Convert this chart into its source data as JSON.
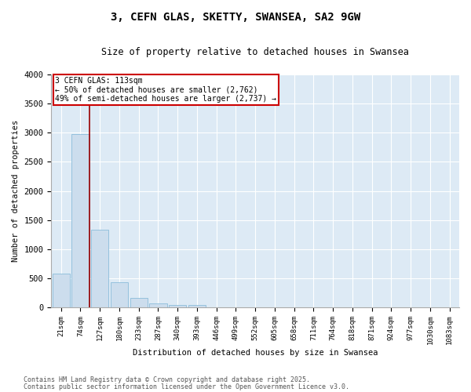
{
  "title": "3, CEFN GLAS, SKETTY, SWANSEA, SA2 9GW",
  "subtitle": "Size of property relative to detached houses in Swansea",
  "xlabel": "Distribution of detached houses by size in Swansea",
  "ylabel": "Number of detached properties",
  "bar_color": "#ccdded",
  "bar_edge_color": "#8bbcda",
  "background_color": "#ddeaf5",
  "grid_color": "#ffffff",
  "fig_background": "#ffffff",
  "categories": [
    "21sqm",
    "74sqm",
    "127sqm",
    "180sqm",
    "233sqm",
    "287sqm",
    "340sqm",
    "393sqm",
    "446sqm",
    "499sqm",
    "552sqm",
    "605sqm",
    "658sqm",
    "711sqm",
    "764sqm",
    "818sqm",
    "871sqm",
    "924sqm",
    "977sqm",
    "1030sqm",
    "1083sqm"
  ],
  "values": [
    580,
    2980,
    1340,
    430,
    160,
    70,
    40,
    35,
    0,
    0,
    0,
    0,
    0,
    0,
    0,
    0,
    0,
    0,
    0,
    0,
    0
  ],
  "ylim": [
    0,
    4000
  ],
  "yticks": [
    0,
    500,
    1000,
    1500,
    2000,
    2500,
    3000,
    3500,
    4000
  ],
  "red_line_x": 1.5,
  "annotation_title": "3 CEFN GLAS: 113sqm",
  "annotation_line1": "← 50% of detached houses are smaller (2,762)",
  "annotation_line2": "49% of semi-detached houses are larger (2,737) →",
  "annotation_box_color": "#ffffff",
  "annotation_box_edge": "#cc0000",
  "footnote1": "Contains HM Land Registry data © Crown copyright and database right 2025.",
  "footnote2": "Contains public sector information licensed under the Open Government Licence v3.0."
}
